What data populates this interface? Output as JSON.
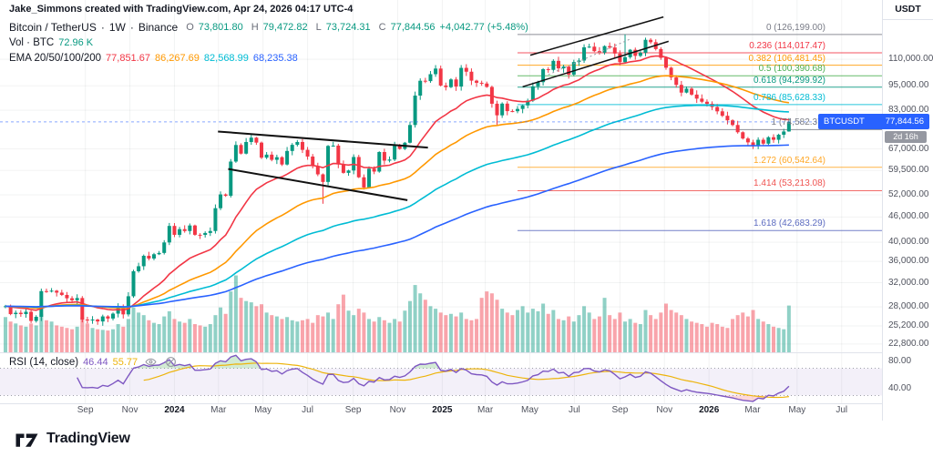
{
  "watermark": "Jake_Simmons created with TradingView.com, Apr 24, 2026 04:17 UTC-4",
  "legend": {
    "symbol": "Bitcoin / TetherUS",
    "separator": "·",
    "timeframe": "1W",
    "exchange": "Binance",
    "ohlc": {
      "o_label": "O",
      "o": "73,801.80",
      "h_label": "H",
      "h": "79,472.82",
      "l_label": "L",
      "l": "73,724.31",
      "c_label": "C",
      "c": "77,844.56",
      "change": "+4,042.77 (+5.48%)"
    },
    "volume_label": "Vol · BTC",
    "volume_value": "72.96 K",
    "ema": {
      "label": "EMA 20/50/100/200",
      "values": [
        "77,851.67",
        "86,267.69",
        "82,568.99",
        "68,235.38"
      ],
      "colors": [
        "#f23645",
        "#ff9800",
        "#00bcd4",
        "#2962ff"
      ]
    }
  },
  "rsi_legend": {
    "label": "RSI (14, close)",
    "value": "46.44",
    "ma_value": "55.77",
    "value_color": "#7e57c2",
    "ma_color": "#edb40c"
  },
  "price_axis": {
    "currency": "USDT",
    "ticks": [
      {
        "label": "110,000.00",
        "value": 110000
      },
      {
        "label": "95,000.00",
        "value": 95000
      },
      {
        "label": "83,000.00",
        "value": 83000
      },
      {
        "label": "67,000.00",
        "value": 67000
      },
      {
        "label": "59,500.00",
        "value": 59500
      },
      {
        "label": "52,000.00",
        "value": 52000
      },
      {
        "label": "46,000.00",
        "value": 46000
      },
      {
        "label": "40,000.00",
        "value": 40000
      },
      {
        "label": "36,000.00",
        "value": 36000
      },
      {
        "label": "32,000.00",
        "value": 32000
      },
      {
        "label": "28,000.00",
        "value": 28000
      },
      {
        "label": "25,200.00",
        "value": 25200
      },
      {
        "label": "22,800.00",
        "value": 22800
      }
    ],
    "badge": {
      "symbol": "BTCUSDT",
      "price": "77,844.56",
      "countdown": "2d 16h",
      "color": "#2962ff"
    }
  },
  "rsi_axis": {
    "ticks": [
      {
        "label": "80.00",
        "value": 80
      },
      {
        "label": "40.00",
        "value": 40
      }
    ]
  },
  "time_axis": {
    "ticks": [
      {
        "label": "Sep",
        "week": 15.6
      },
      {
        "label": "Nov",
        "week": 24.3
      },
      {
        "label": "2024",
        "week": 33,
        "major": true
      },
      {
        "label": "Mar",
        "week": 41.6
      },
      {
        "label": "May",
        "week": 50.3
      },
      {
        "label": "Jul",
        "week": 59
      },
      {
        "label": "Sep",
        "week": 67.9
      },
      {
        "label": "Nov",
        "week": 76.6
      },
      {
        "label": "2025",
        "week": 85.3,
        "major": true
      },
      {
        "label": "Mar",
        "week": 93.7
      },
      {
        "label": "May",
        "week": 102.4
      },
      {
        "label": "Jul",
        "week": 111.1
      },
      {
        "label": "Sep",
        "week": 120
      },
      {
        "label": "Nov",
        "week": 128.7
      },
      {
        "label": "2026",
        "week": 137.4,
        "major": true
      },
      {
        "label": "Mar",
        "week": 145.9
      },
      {
        "label": "May",
        "week": 154.6
      },
      {
        "label": "Jul",
        "week": 163.3
      }
    ]
  },
  "footer": {
    "brand": "TradingView"
  },
  "colors": {
    "up": "#089981",
    "down": "#f23645",
    "vol_up": "rgba(8,153,129,0.45)",
    "vol_down": "rgba(242,54,69,0.45)",
    "grid": "rgba(42,46,57,0.06)",
    "axis_text": "#50535e",
    "separator": "#e0e3eb",
    "last_price_line": "#2962ff",
    "rsi_band_fill": "rgba(126,87,194,0.09)",
    "rsi_overbought_fill": "rgba(76,175,80,0.25)",
    "rsi_oversold_fill": "rgba(242,54,69,0.2)"
  },
  "chart_data": {
    "type": "candlestick",
    "title": "Bitcoin / TetherUS · 1W · Binance",
    "interval": "1W",
    "start_date": "2023-05-15",
    "price_scale": {
      "type": "log",
      "min": 22000,
      "max": 128000
    },
    "closes": [
      28100,
      26900,
      27100,
      26900,
      27250,
      25900,
      26500,
      30550,
      30480,
      30620,
      30290,
      29910,
      29360,
      29040,
      29400,
      26100,
      26030,
      26100,
      25830,
      26560,
      26250,
      26970,
      27920,
      26860,
      29690,
      34090,
      35050,
      37130,
      36570,
      37450,
      37720,
      39970,
      43790,
      41690,
      43020,
      42580,
      43900,
      41700,
      41670,
      42120,
      42580,
      48300,
      52120,
      51730,
      62500,
      68500,
      65300,
      69640,
      71330,
      69400,
      63870,
      64940,
      63110,
      64030,
      61490,
      66270,
      68550,
      69640,
      66680,
      64260,
      60970,
      58240,
      55850,
      68150,
      68260,
      61500,
      58720,
      59490,
      64100,
      57300,
      54160,
      60080,
      59140,
      65890,
      62820,
      63210,
      68390,
      67050,
      69360,
      76500,
      90000,
      97700,
      97500,
      101300,
      104500,
      95160,
      94300,
      98400,
      94600,
      104900,
      102700,
      97750,
      96600,
      96200,
      94410,
      86050,
      80700,
      86100,
      82600,
      82560,
      83600,
      85250,
      87520,
      94710,
      96950,
      104150,
      103750,
      109060,
      104640,
      105650,
      101050,
      108350,
      109250,
      117550,
      117950,
      115050,
      114150,
      118300,
      117400,
      113550,
      108250,
      111300,
      115950,
      112100,
      114050,
      122500,
      120900,
      116400,
      110900,
      105000,
      99500,
      95500,
      91500,
      93500,
      90500,
      88500,
      87000,
      86000,
      84500,
      82500,
      80500,
      78500,
      76500,
      73500,
      71000,
      69500,
      68200,
      70500,
      69000,
      71500,
      70500,
      72500,
      73801.8,
      77844.56
    ],
    "volumes_k": [
      55,
      48,
      45,
      42,
      40,
      45,
      42,
      60,
      50,
      48,
      42,
      40,
      38,
      36,
      40,
      55,
      45,
      38,
      36,
      35,
      34,
      36,
      44,
      40,
      52,
      70,
      62,
      58,
      50,
      46,
      44,
      56,
      64,
      52,
      48,
      46,
      52,
      44,
      42,
      40,
      44,
      58,
      70,
      60,
      95,
      120,
      85,
      80,
      78,
      72,
      75,
      62,
      58,
      56,
      52,
      55,
      50,
      48,
      50,
      52,
      46,
      58,
      56,
      62,
      52,
      75,
      90,
      65,
      58,
      68,
      62,
      52,
      48,
      55,
      50,
      46,
      52,
      48,
      65,
      80,
      105,
      92,
      82,
      72,
      68,
      62,
      58,
      60,
      56,
      62,
      52,
      50,
      52,
      85,
      95,
      92,
      82,
      68,
      62,
      58,
      66,
      72,
      62,
      68,
      64,
      76,
      60,
      66,
      52,
      50,
      56,
      48,
      58,
      72,
      62,
      52,
      56,
      85,
      58,
      52,
      62,
      48,
      52,
      46,
      44,
      66,
      58,
      52,
      62,
      76,
      66,
      62,
      58,
      52,
      48,
      46,
      44,
      40,
      46,
      44,
      40,
      38,
      52,
      58,
      62,
      56,
      66,
      52,
      48,
      44,
      40,
      38,
      36,
      73
    ],
    "overrides": {
      "62": {
        "low": 49500
      },
      "96": {
        "low": 76500
      },
      "121": {
        "high": 126199
      },
      "146": {
        "low": 67000
      },
      "153": {
        "open": 73801.8,
        "high": 79472.82,
        "low": 73724.31,
        "close": 77844.56
      }
    },
    "ema_periods": [
      20,
      50,
      100,
      200
    ],
    "rsi": {
      "period": 14,
      "upper": 70,
      "lower": 30
    },
    "fib_start_week": 100,
    "fib_levels": [
      {
        "label": "0 (126,199.00)",
        "value": 126199,
        "color": "#787b86"
      },
      {
        "label": "0.236 (114,017.47)",
        "value": 114017.47,
        "color": "#f23645"
      },
      {
        "label": "0.382 (106,481.45)",
        "value": 106481.45,
        "color": "#ff9800"
      },
      {
        "label": "0.5 (100,390.68)",
        "value": 100390.68,
        "color": "#4caf50"
      },
      {
        "label": "0.618 (94,299.92)",
        "value": 94299.92,
        "color": "#089981"
      },
      {
        "label": "0.786 (85,628.33)",
        "value": 85628.33,
        "color": "#00bcd4"
      },
      {
        "label": "1 (74,582.37)",
        "value": 74582.37,
        "color": "#787b86"
      },
      {
        "label": "1.272 (60,542.64)",
        "value": 60542.64,
        "color": "#ffa726"
      },
      {
        "label": "1.414 (53,213.08)",
        "value": 53213.08,
        "color": "#ef5350"
      },
      {
        "label": "1.618 (42,683.29)",
        "value": 42683.29,
        "color": "#5c6bc0"
      }
    ],
    "trendlines": [
      {
        "name": "channel-2024-upper",
        "w1": 41.5,
        "p1": 73800,
        "w2": 82.5,
        "p2": 67500,
        "color": "#111111",
        "width": 2
      },
      {
        "name": "channel-2024-lower",
        "w1": 43.5,
        "p1": 60000,
        "w2": 78.5,
        "p2": 50500,
        "color": "#111111",
        "width": 2
      },
      {
        "name": "channel-2025-upper",
        "w1": 102.5,
        "p1": 112500,
        "w2": 128.5,
        "p2": 139000,
        "color": "#111111",
        "width": 1.5
      },
      {
        "name": "channel-2025-lower",
        "w1": 101,
        "p1": 94500,
        "w2": 129.5,
        "p2": 121500,
        "color": "#111111",
        "width": 1.5
      },
      {
        "name": "channel-2025-mid",
        "w1": 106,
        "p1": 101000,
        "w2": 122,
        "p2": 123000,
        "color": "#9598a1",
        "width": 1,
        "dash": "2,3"
      }
    ]
  }
}
